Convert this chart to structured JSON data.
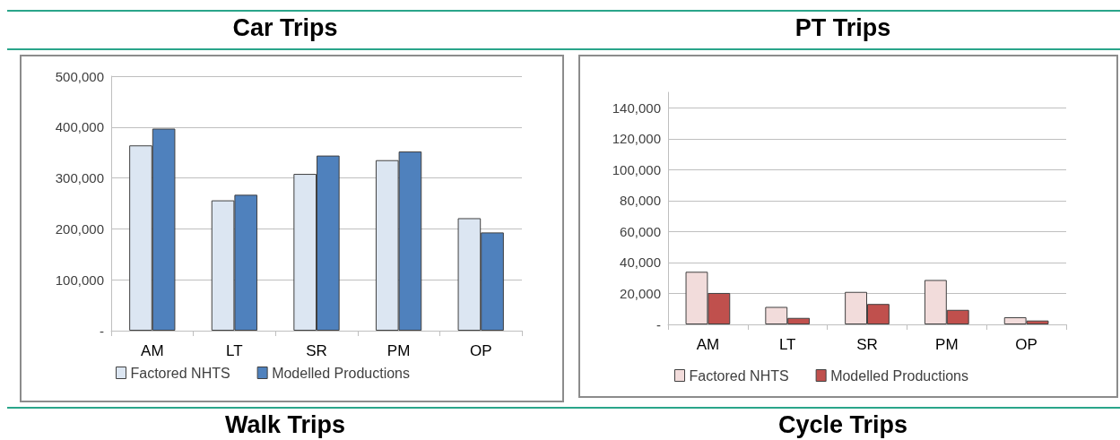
{
  "chart_data": [
    {
      "type": "bar",
      "title": "Car Trips",
      "categories": [
        "AM",
        "LT",
        "SR",
        "PM",
        "OP"
      ],
      "series": [
        {
          "name": "Factored NHTS",
          "color": "#dce6f2",
          "values": [
            364000,
            256000,
            308000,
            335000,
            221000
          ]
        },
        {
          "name": "Modelled Productions",
          "color": "#4f81bd",
          "values": [
            397000,
            267000,
            344000,
            352000,
            193000
          ]
        }
      ],
      "ylim": [
        0,
        500000
      ],
      "yticks": [
        {
          "value": 0,
          "label": "-"
        },
        {
          "value": 100000,
          "label": "100,000"
        },
        {
          "value": 200000,
          "label": "200,000"
        },
        {
          "value": 300000,
          "label": "300,000"
        },
        {
          "value": 400000,
          "label": "400,000"
        },
        {
          "value": 500000,
          "label": "500,000"
        }
      ],
      "grid": "y",
      "legend": "bottom"
    },
    {
      "type": "bar",
      "title": "PT Trips",
      "categories": [
        "AM",
        "LT",
        "SR",
        "PM",
        "OP"
      ],
      "series": [
        {
          "name": "Factored NHTS",
          "color": "#f2dcdb",
          "values": [
            34000,
            11300,
            21000,
            28700,
            4600
          ]
        },
        {
          "name": "Modelled Productions",
          "color": "#c0504d",
          "values": [
            20300,
            4200,
            13200,
            9400,
            2500
          ]
        }
      ],
      "ylim": [
        0,
        150000
      ],
      "yticks": [
        {
          "value": 0,
          "label": "-"
        },
        {
          "value": 20000,
          "label": "20,000"
        },
        {
          "value": 40000,
          "label": "40,000"
        },
        {
          "value": 60000,
          "label": "60,000"
        },
        {
          "value": 80000,
          "label": "80,000"
        },
        {
          "value": 100000,
          "label": "100,000"
        },
        {
          "value": 120000,
          "label": "120,000"
        },
        {
          "value": 140000,
          "label": "140,000"
        }
      ],
      "grid": "y",
      "legend": "bottom"
    },
    {
      "type": "other",
      "title": "Walk Trips"
    },
    {
      "type": "other",
      "title": "Cycle Trips"
    }
  ]
}
